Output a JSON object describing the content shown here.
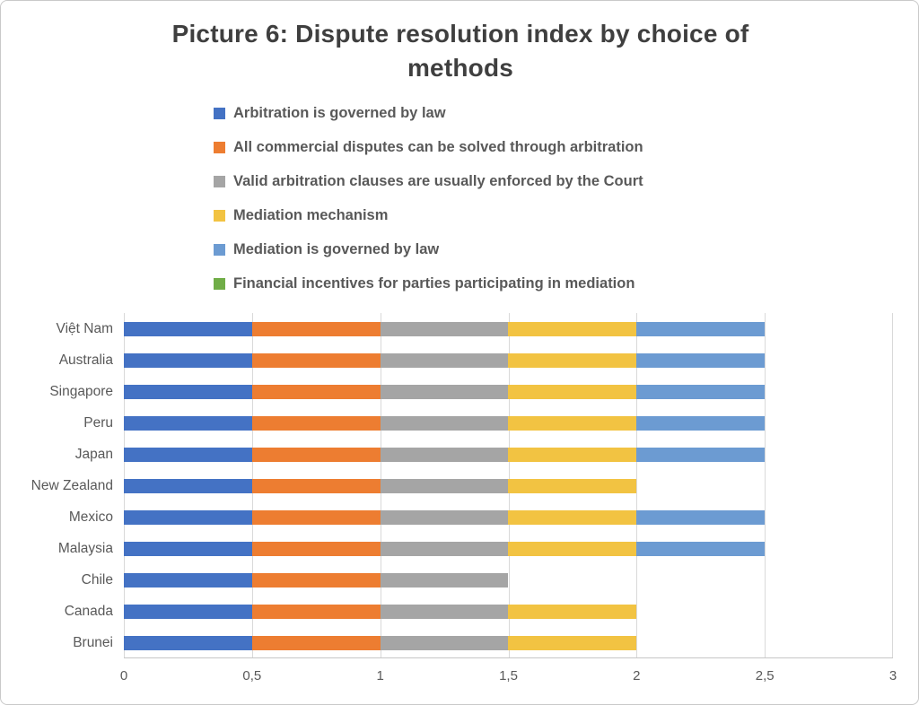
{
  "title": "Picture 6: Dispute resolution index by choice of methods",
  "legend": [
    {
      "label": "Arbitration is governed by law",
      "color": "#4472C4"
    },
    {
      "label": "All commercial disputes can be solved through arbitration",
      "color": "#ED7D31"
    },
    {
      "label": "Valid arbitration clauses are usually enforced by the Court",
      "color": "#A5A5A5"
    },
    {
      "label": "Mediation mechanism",
      "color": "#F2C342"
    },
    {
      "label": "Mediation is governed by law",
      "color": "#6C9BD2"
    },
    {
      "label": "Financial incentives for parties participating in mediation",
      "color": "#70AD47"
    }
  ],
  "chart_data": {
    "type": "bar",
    "orientation": "horizontal",
    "stacked": true,
    "title": "Picture 6: Dispute resolution index by choice of methods",
    "categories": [
      "Việt Nam",
      "Australia",
      "Singapore",
      "Peru",
      "Japan",
      "New Zealand",
      "Mexico",
      "Malaysia",
      "Chile",
      "Canada",
      "Brunei"
    ],
    "series": [
      {
        "name": "Arbitration is governed by law",
        "color": "#4472C4",
        "values": [
          0.5,
          0.5,
          0.5,
          0.5,
          0.5,
          0.5,
          0.5,
          0.5,
          0.5,
          0.5,
          0.5
        ]
      },
      {
        "name": "All commercial disputes can be solved through arbitration",
        "color": "#ED7D31",
        "values": [
          0.5,
          0.5,
          0.5,
          0.5,
          0.5,
          0.5,
          0.5,
          0.5,
          0.5,
          0.5,
          0.5
        ]
      },
      {
        "name": "Valid arbitration clauses are usually enforced by the Court",
        "color": "#A5A5A5",
        "values": [
          0.5,
          0.5,
          0.5,
          0.5,
          0.5,
          0.5,
          0.5,
          0.5,
          0.5,
          0.5,
          0.5
        ]
      },
      {
        "name": "Mediation mechanism",
        "color": "#F2C342",
        "values": [
          0.5,
          0.5,
          0.5,
          0.5,
          0.5,
          0.5,
          0.5,
          0.5,
          0,
          0.5,
          0.5
        ]
      },
      {
        "name": "Mediation is governed by law",
        "color": "#6C9BD2",
        "values": [
          0.5,
          0.5,
          0.5,
          0.5,
          0.5,
          0,
          0.5,
          0.5,
          0,
          0,
          0
        ]
      },
      {
        "name": "Financial incentives for parties participating in mediation",
        "color": "#70AD47",
        "values": [
          0,
          0,
          0,
          0,
          0,
          0,
          0,
          0,
          0,
          0,
          0
        ]
      }
    ],
    "totals": [
      2.5,
      2.5,
      2.5,
      2.5,
      2.5,
      2.0,
      2.5,
      2.5,
      1.5,
      2.0,
      2.0
    ],
    "x_ticks": [
      "0",
      "0,5",
      "1",
      "1,5",
      "2",
      "2,5",
      "3"
    ],
    "xlim": [
      0,
      3
    ],
    "grid": true,
    "legend_position": "top-left"
  }
}
